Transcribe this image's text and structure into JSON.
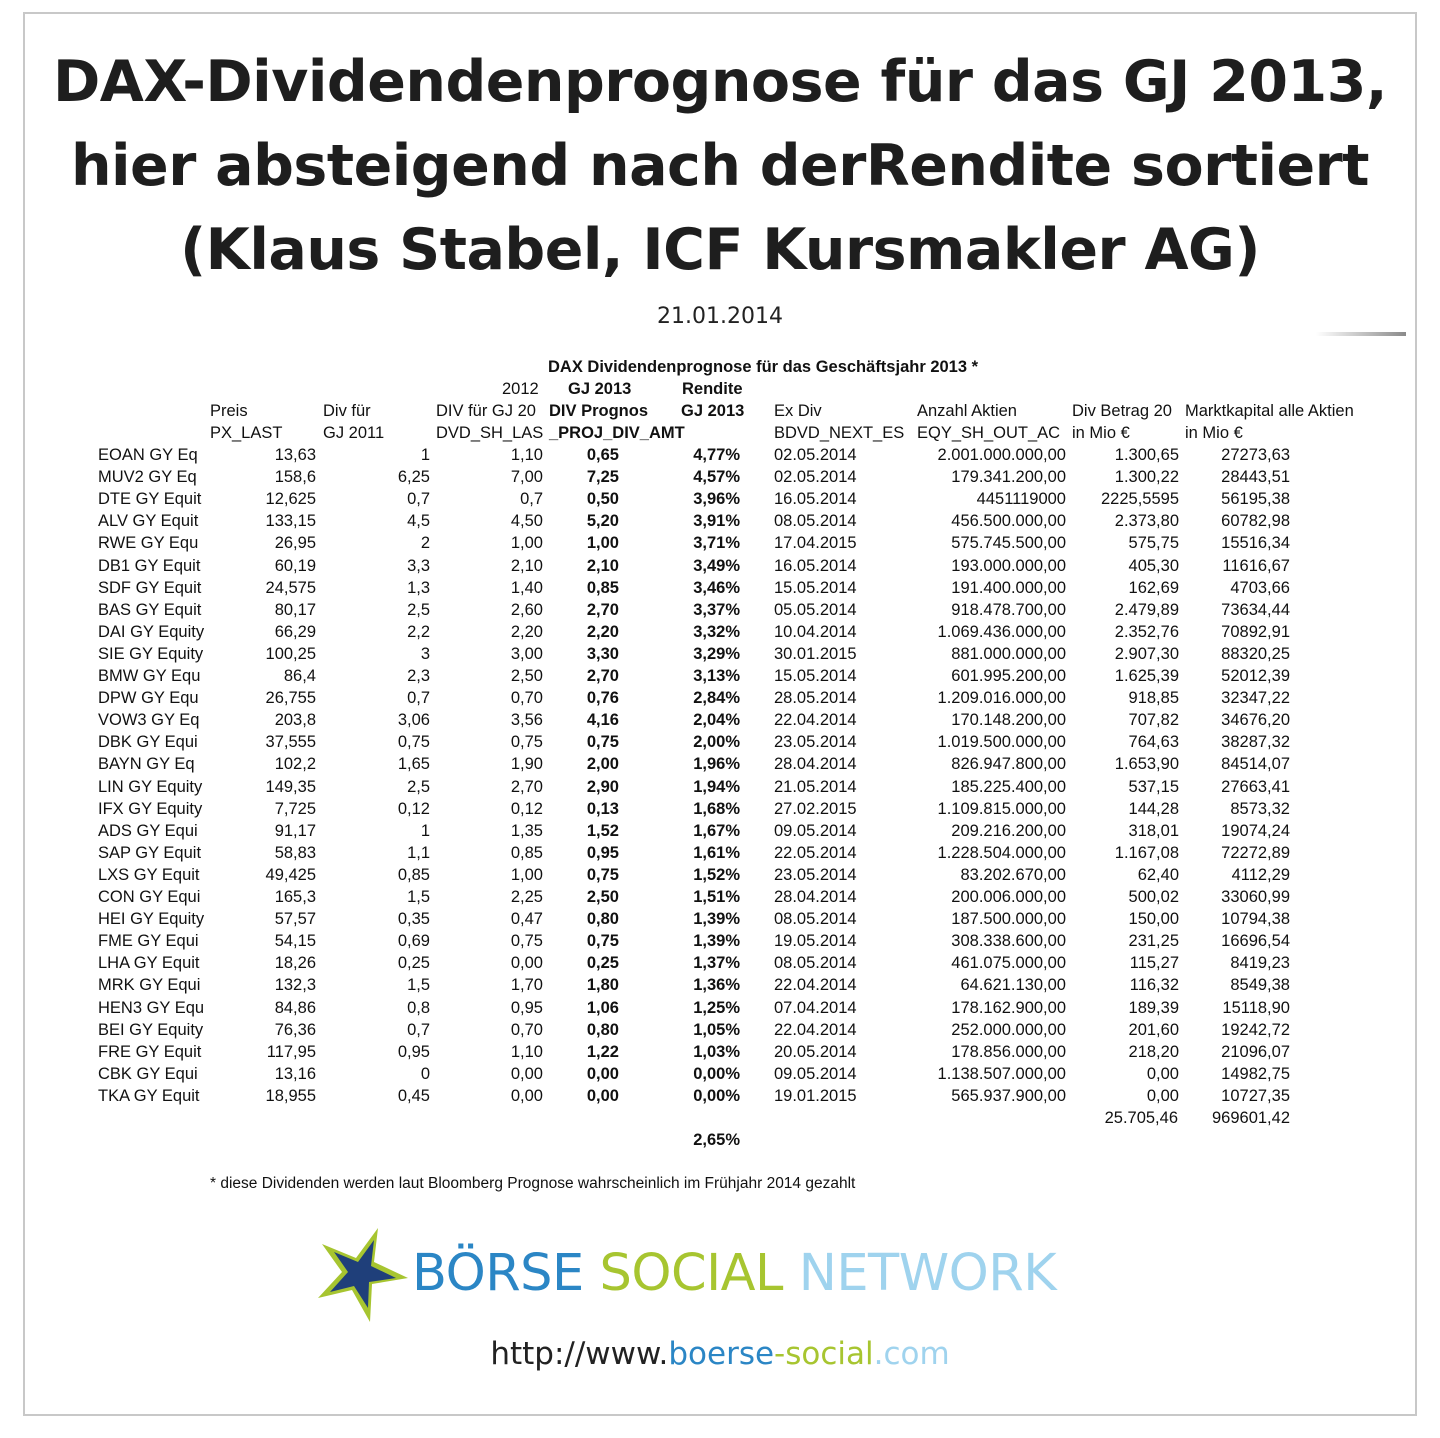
{
  "title": {
    "line1": "DAX-Dividendenprognose für das GJ 2013,",
    "line2": "hier absteigend nach derRendite sortiert",
    "line3": "(Klaus Stabel, ICF Kursmakler AG)"
  },
  "date": "21.01.2014",
  "table": {
    "caption": "DAX Dividendenprognose für das Geschäftsjahr 2013 *",
    "headers": {
      "year_2012": "2012",
      "gj2013_a": "GJ 2013",
      "rendite_a": "Rendite",
      "preis": "Preis",
      "div_fuer": "Div für",
      "div_gj20": "DIV für GJ 20",
      "div_prognose": "DIV Prognos",
      "gj2013_b": "GJ 2013",
      "ex_div": "Ex Div",
      "anzahl_aktien": "Anzahl Aktien",
      "div_betrag": "Div Betrag 20",
      "marktkapital": "Marktkapital alle Aktien",
      "px_last": "PX_LAST",
      "gj2011": "GJ 2011",
      "dvd_sh": "DVD_SH_LAS",
      "proj_div": "_PROJ_DIV_AMT",
      "bdvd_next": "BDVD_NEXT_ES",
      "eqy_sh": "EQY_SH_OUT_AC",
      "in_mio_a": "in Mio €",
      "in_mio_b": "in Mio €"
    },
    "rows": [
      {
        "name": "EOAN GY Eq",
        "px": "13,63",
        "d11": "1",
        "d12": "1,10",
        "prog": "0,65",
        "rend": "4,77%",
        "ex": "02.05.2014",
        "shares": "2.001.000.000,00",
        "betrag": "1.300,65",
        "mkap": "27273,63"
      },
      {
        "name": "MUV2 GY Eq",
        "px": "158,6",
        "d11": "6,25",
        "d12": "7,00",
        "prog": "7,25",
        "rend": "4,57%",
        "ex": "02.05.2014",
        "shares": "179.341.200,00",
        "betrag": "1.300,22",
        "mkap": "28443,51"
      },
      {
        "name": "DTE GY Equit",
        "px": "12,625",
        "d11": "0,7",
        "d12": "0,7",
        "prog": "0,50",
        "rend": "3,96%",
        "ex": "16.05.2014",
        "shares": "4451119000",
        "betrag": "2225,5595",
        "mkap": "56195,38"
      },
      {
        "name": "ALV GY Equit",
        "px": "133,15",
        "d11": "4,5",
        "d12": "4,50",
        "prog": "5,20",
        "rend": "3,91%",
        "ex": "08.05.2014",
        "shares": "456.500.000,00",
        "betrag": "2.373,80",
        "mkap": "60782,98"
      },
      {
        "name": "RWE GY Equ",
        "px": "26,95",
        "d11": "2",
        "d12": "1,00",
        "prog": "1,00",
        "rend": "3,71%",
        "ex": "17.04.2015",
        "shares": "575.745.500,00",
        "betrag": "575,75",
        "mkap": "15516,34"
      },
      {
        "name": "DB1 GY Equit",
        "px": "60,19",
        "d11": "3,3",
        "d12": "2,10",
        "prog": "2,10",
        "rend": "3,49%",
        "ex": "16.05.2014",
        "shares": "193.000.000,00",
        "betrag": "405,30",
        "mkap": "11616,67"
      },
      {
        "name": "SDF GY Equit",
        "px": "24,575",
        "d11": "1,3",
        "d12": "1,40",
        "prog": "0,85",
        "rend": "3,46%",
        "ex": "15.05.2014",
        "shares": "191.400.000,00",
        "betrag": "162,69",
        "mkap": "4703,66"
      },
      {
        "name": "BAS GY Equit",
        "px": "80,17",
        "d11": "2,5",
        "d12": "2,60",
        "prog": "2,70",
        "rend": "3,37%",
        "ex": "05.05.2014",
        "shares": "918.478.700,00",
        "betrag": "2.479,89",
        "mkap": "73634,44"
      },
      {
        "name": "DAI GY Equity",
        "px": "66,29",
        "d11": "2,2",
        "d12": "2,20",
        "prog": "2,20",
        "rend": "3,32%",
        "ex": "10.04.2014",
        "shares": "1.069.436.000,00",
        "betrag": "2.352,76",
        "mkap": "70892,91"
      },
      {
        "name": "SIE GY Equity",
        "px": "100,25",
        "d11": "3",
        "d12": "3,00",
        "prog": "3,30",
        "rend": "3,29%",
        "ex": "30.01.2015",
        "shares": "881.000.000,00",
        "betrag": "2.907,30",
        "mkap": "88320,25"
      },
      {
        "name": "BMW GY Equ",
        "px": "86,4",
        "d11": "2,3",
        "d12": "2,50",
        "prog": "2,70",
        "rend": "3,13%",
        "ex": "15.05.2014",
        "shares": "601.995.200,00",
        "betrag": "1.625,39",
        "mkap": "52012,39"
      },
      {
        "name": "DPW GY Equ",
        "px": "26,755",
        "d11": "0,7",
        "d12": "0,70",
        "prog": "0,76",
        "rend": "2,84%",
        "ex": "28.05.2014",
        "shares": "1.209.016.000,00",
        "betrag": "918,85",
        "mkap": "32347,22"
      },
      {
        "name": "VOW3 GY Eq",
        "px": "203,8",
        "d11": "3,06",
        "d12": "3,56",
        "prog": "4,16",
        "rend": "2,04%",
        "ex": "22.04.2014",
        "shares": "170.148.200,00",
        "betrag": "707,82",
        "mkap": "34676,20"
      },
      {
        "name": "DBK GY Equi",
        "px": "37,555",
        "d11": "0,75",
        "d12": "0,75",
        "prog": "0,75",
        "rend": "2,00%",
        "ex": "23.05.2014",
        "shares": "1.019.500.000,00",
        "betrag": "764,63",
        "mkap": "38287,32"
      },
      {
        "name": "BAYN GY Eq",
        "px": "102,2",
        "d11": "1,65",
        "d12": "1,90",
        "prog": "2,00",
        "rend": "1,96%",
        "ex": "28.04.2014",
        "shares": "826.947.800,00",
        "betrag": "1.653,90",
        "mkap": "84514,07"
      },
      {
        "name": "LIN GY Equity",
        "px": "149,35",
        "d11": "2,5",
        "d12": "2,70",
        "prog": "2,90",
        "rend": "1,94%",
        "ex": "21.05.2014",
        "shares": "185.225.400,00",
        "betrag": "537,15",
        "mkap": "27663,41"
      },
      {
        "name": "IFX GY Equity",
        "px": "7,725",
        "d11": "0,12",
        "d12": "0,12",
        "prog": "0,13",
        "rend": "1,68%",
        "ex": "27.02.2015",
        "shares": "1.109.815.000,00",
        "betrag": "144,28",
        "mkap": "8573,32"
      },
      {
        "name": "ADS GY Equi",
        "px": "91,17",
        "d11": "1",
        "d12": "1,35",
        "prog": "1,52",
        "rend": "1,67%",
        "ex": "09.05.2014",
        "shares": "209.216.200,00",
        "betrag": "318,01",
        "mkap": "19074,24"
      },
      {
        "name": "SAP GY Equit",
        "px": "58,83",
        "d11": "1,1",
        "d12": "0,85",
        "prog": "0,95",
        "rend": "1,61%",
        "ex": "22.05.2014",
        "shares": "1.228.504.000,00",
        "betrag": "1.167,08",
        "mkap": "72272,89"
      },
      {
        "name": "LXS GY Equit",
        "px": "49,425",
        "d11": "0,85",
        "d12": "1,00",
        "prog": "0,75",
        "rend": "1,52%",
        "ex": "23.05.2014",
        "shares": "83.202.670,00",
        "betrag": "62,40",
        "mkap": "4112,29"
      },
      {
        "name": "CON GY Equi",
        "px": "165,3",
        "d11": "1,5",
        "d12": "2,25",
        "prog": "2,50",
        "rend": "1,51%",
        "ex": "28.04.2014",
        "shares": "200.006.000,00",
        "betrag": "500,02",
        "mkap": "33060,99"
      },
      {
        "name": "HEI GY Equity",
        "px": "57,57",
        "d11": "0,35",
        "d12": "0,47",
        "prog": "0,80",
        "rend": "1,39%",
        "ex": "08.05.2014",
        "shares": "187.500.000,00",
        "betrag": "150,00",
        "mkap": "10794,38"
      },
      {
        "name": "FME GY Equi",
        "px": "54,15",
        "d11": "0,69",
        "d12": "0,75",
        "prog": "0,75",
        "rend": "1,39%",
        "ex": "19.05.2014",
        "shares": "308.338.600,00",
        "betrag": "231,25",
        "mkap": "16696,54"
      },
      {
        "name": "LHA GY Equit",
        "px": "18,26",
        "d11": "0,25",
        "d12": "0,00",
        "prog": "0,25",
        "rend": "1,37%",
        "ex": "08.05.2014",
        "shares": "461.075.000,00",
        "betrag": "115,27",
        "mkap": "8419,23"
      },
      {
        "name": "MRK GY Equi",
        "px": "132,3",
        "d11": "1,5",
        "d12": "1,70",
        "prog": "1,80",
        "rend": "1,36%",
        "ex": "22.04.2014",
        "shares": "64.621.130,00",
        "betrag": "116,32",
        "mkap": "8549,38"
      },
      {
        "name": "HEN3 GY Equ",
        "px": "84,86",
        "d11": "0,8",
        "d12": "0,95",
        "prog": "1,06",
        "rend": "1,25%",
        "ex": "07.04.2014",
        "shares": "178.162.900,00",
        "betrag": "189,39",
        "mkap": "15118,90"
      },
      {
        "name": "BEI GY Equity",
        "px": "76,36",
        "d11": "0,7",
        "d12": "0,70",
        "prog": "0,80",
        "rend": "1,05%",
        "ex": "22.04.2014",
        "shares": "252.000.000,00",
        "betrag": "201,60",
        "mkap": "19242,72"
      },
      {
        "name": "FRE GY Equit",
        "px": "117,95",
        "d11": "0,95",
        "d12": "1,10",
        "prog": "1,22",
        "rend": "1,03%",
        "ex": "20.05.2014",
        "shares": "178.856.000,00",
        "betrag": "218,20",
        "mkap": "21096,07"
      },
      {
        "name": "CBK GY Equi",
        "px": "13,16",
        "d11": "0",
        "d12": "0,00",
        "prog": "0,00",
        "rend": "0,00%",
        "ex": "09.05.2014",
        "shares": "1.138.507.000,00",
        "betrag": "0,00",
        "mkap": "14982,75"
      },
      {
        "name": "TKA GY Equit",
        "px": "18,955",
        "d11": "0,45",
        "d12": "0,00",
        "prog": "0,00",
        "rend": "0,00%",
        "ex": "19.01.2015",
        "shares": "565.937.900,00",
        "betrag": "0,00",
        "mkap": "10727,35"
      }
    ],
    "totals": {
      "betrag": "25.705,46",
      "mkap": "969601,42",
      "avg_rendite": "2,65%"
    },
    "footnote": "* diese Dividenden werden laut Bloomberg Prognose  wahrscheinlich  im Frühjahr 2014 gezahlt"
  },
  "logo": {
    "word1": "BÖRSE",
    "word2": "SOCIAL",
    "word3": "NETWORK",
    "colors": {
      "blue": "#2b86c5",
      "green": "#a7c530",
      "light": "#9fd3ee",
      "star_fill": "#1f3f7a",
      "star_outline": "#a7c530"
    },
    "icon": "star-icon"
  },
  "url": {
    "prefix": "http://www.",
    "part1": "boerse",
    "part2": "-social",
    "part3": ".com"
  }
}
